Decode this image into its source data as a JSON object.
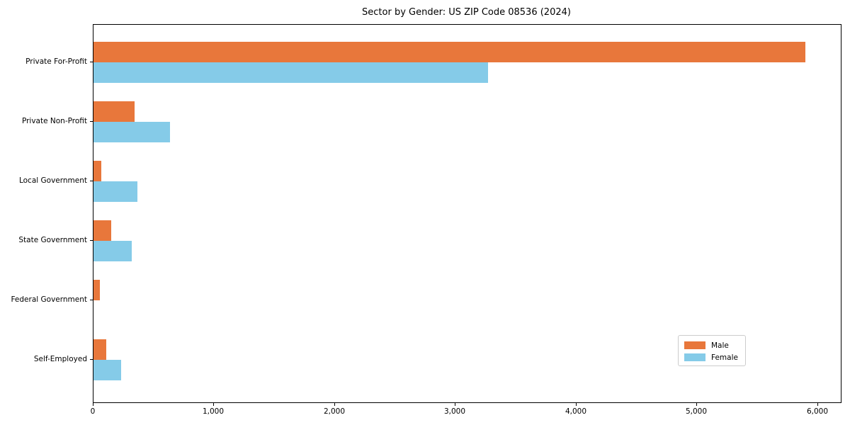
{
  "chart_data": {
    "type": "bar",
    "orientation": "horizontal",
    "title": "Sector by Gender: US ZIP Code 08536 (2024)",
    "categories": [
      "Private For-Profit",
      "Private Non-Profit",
      "Local Government",
      "State Government",
      "Federal Government",
      "Self-Employed"
    ],
    "series": [
      {
        "name": "Male",
        "color": "#e8773b",
        "values": [
          5895,
          341,
          65,
          147,
          53,
          106
        ]
      },
      {
        "name": "Female",
        "color": "#85cbe8",
        "values": [
          3268,
          635,
          364,
          317,
          0,
          229
        ]
      }
    ],
    "xlabel": "",
    "ylabel": "",
    "xlim": [
      0,
      6190
    ],
    "xticks": [
      0,
      1000,
      2000,
      3000,
      4000,
      5000,
      6000
    ],
    "xtick_labels": [
      "0",
      "1,000",
      "2,000",
      "3,000",
      "4,000",
      "5,000",
      "6,000"
    ],
    "grid": false,
    "legend_position": "lower right"
  }
}
